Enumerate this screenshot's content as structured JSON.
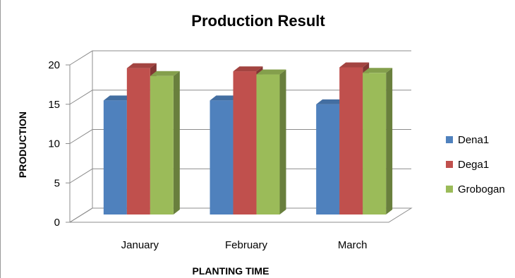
{
  "chart_data": {
    "type": "bar",
    "title": "Production Result",
    "xlabel": "PLANTING TIME",
    "ylabel": "PRODUCTION",
    "categories": [
      "January",
      "February",
      "March"
    ],
    "series": [
      {
        "name": "Dena1",
        "values": [
          14.5,
          14.5,
          14.0
        ],
        "color": "#4f81bd"
      },
      {
        "name": "Dega1",
        "values": [
          18.6,
          18.2,
          18.7
        ],
        "color": "#c0504d"
      },
      {
        "name": "Grobogan",
        "values": [
          17.6,
          17.8,
          18.0
        ],
        "color": "#9bbb59"
      }
    ],
    "ylim": [
      0,
      20
    ],
    "yticks": [
      0,
      5,
      10,
      15,
      20
    ],
    "grid": true,
    "legend": "right",
    "style": "3d-clustered-column"
  }
}
